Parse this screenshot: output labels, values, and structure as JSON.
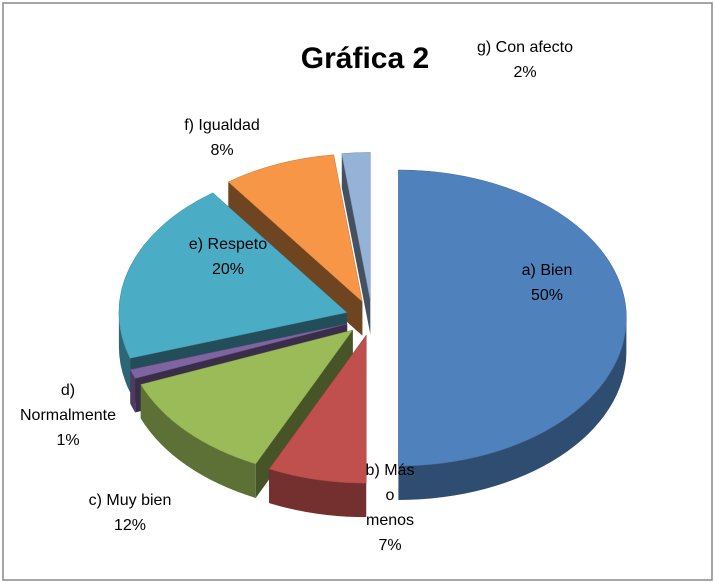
{
  "chart_data": {
    "type": "pie",
    "title": "Gráfica 2",
    "categories": [
      "a) Bien",
      "b) Más o menos",
      "c) Muy bien",
      "d) Normalmente",
      "e) Respeto",
      "f) Igualdad",
      "g) Con afecto"
    ],
    "values": [
      50,
      7,
      12,
      1,
      20,
      8,
      2
    ],
    "value_labels": [
      "50%",
      "7%",
      "12%",
      "1%",
      "20%",
      "8%",
      "2%"
    ],
    "colors": [
      "#4f81bd",
      "#c0504d",
      "#9bbb59",
      "#8064a2",
      "#4bacc6",
      "#f79646",
      "#95b3d7"
    ]
  }
}
